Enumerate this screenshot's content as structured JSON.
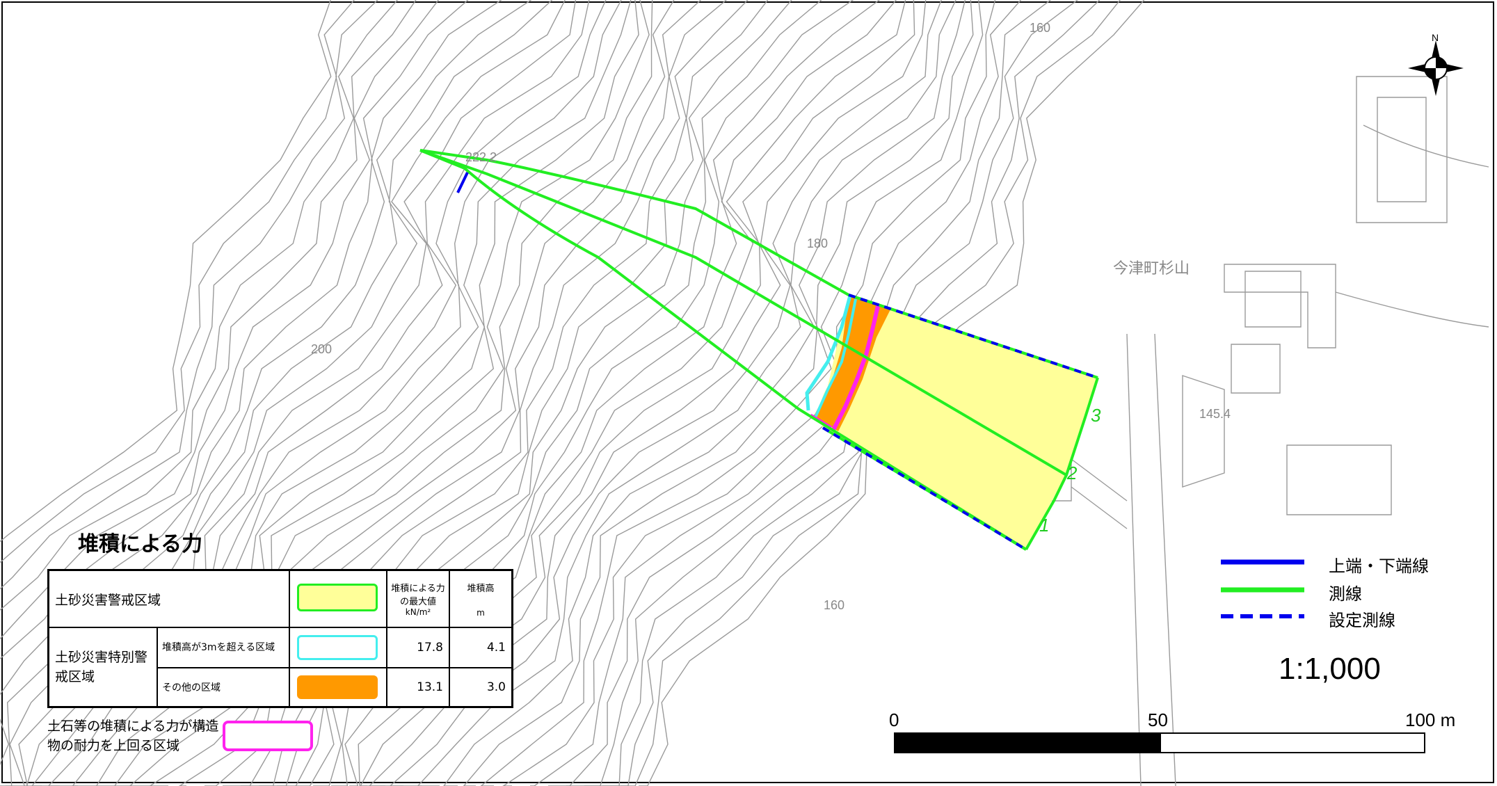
{
  "map": {
    "contours": {
      "label_160_top": "160",
      "label_180": "180",
      "label_200": "200",
      "label_160_bottom": "160"
    },
    "spot_heights": {
      "top": "222.2",
      "right": "145.4"
    },
    "place_name": "今津町杉山",
    "survey_line_numbers": [
      "1",
      "2",
      "3"
    ],
    "north_label": "N"
  },
  "legend": {
    "title": "堆積による力",
    "table": {
      "header_force": "堆積による力の最大値",
      "header_force_unit": "kN/m²",
      "header_height": "堆積高",
      "header_height_unit": "m",
      "warning_zone_label": "土砂災害警戒区域",
      "special_zone_label": "土砂災害特別警戒区域",
      "rows": [
        {
          "label": "堆積高が3mを超える区域",
          "force": "17.8",
          "height": "4.1"
        },
        {
          "label": "その他の区域",
          "force": "13.1",
          "height": "3.0"
        }
      ]
    },
    "structure_zone_label": "土石等の堆積による力が構造物の耐力を上回る区域"
  },
  "line_legend": [
    {
      "label": "上端・下端線",
      "style": "solid-blue"
    },
    {
      "label": "測線",
      "style": "solid-green"
    },
    {
      "label": "設定測線",
      "style": "dashed-blue"
    }
  ],
  "scale": {
    "ratio": "1:1,000",
    "ticks": [
      "0",
      "50",
      "100 m"
    ]
  },
  "colors": {
    "warning_zone_fill": "#ffff99",
    "warning_zone_border": "#22ee22",
    "special_over3m": "#44eeee",
    "special_other": "#ff9900",
    "structure_zone": "#ff22ee",
    "upper_lower_line": "#0000ee",
    "survey_line": "#22ee22",
    "contour": "#999999"
  }
}
